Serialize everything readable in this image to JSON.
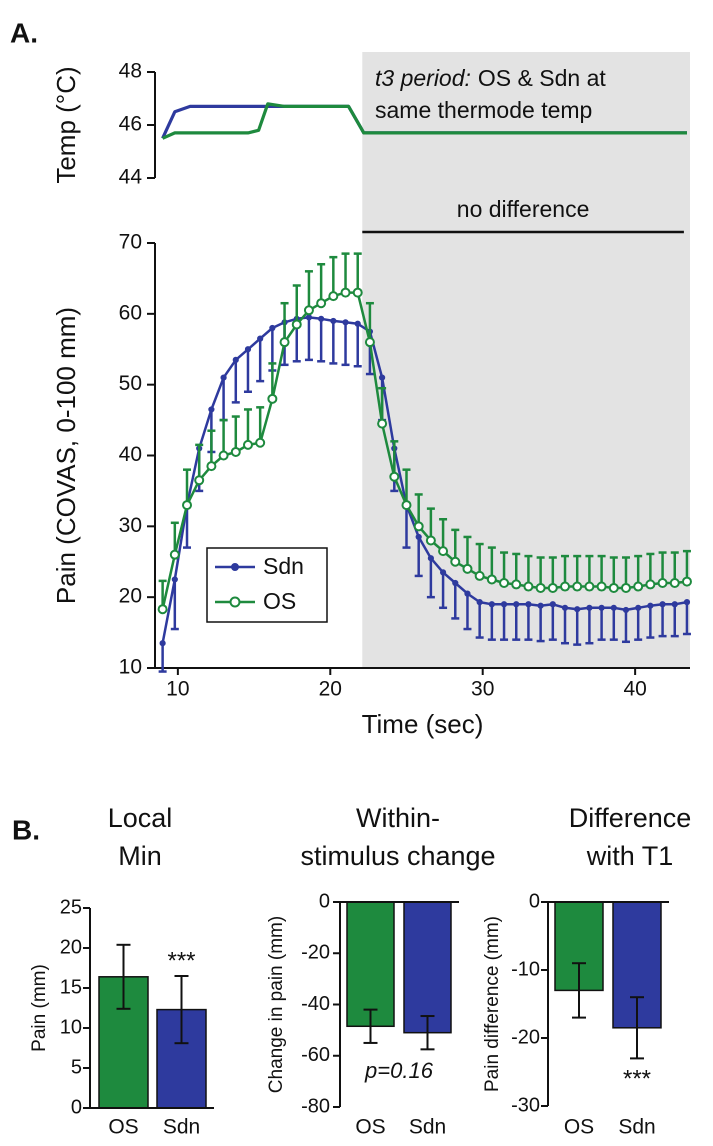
{
  "chart_data": [
    {
      "type": "line",
      "panel_label": "A.",
      "ylabel": "Temp (°C)",
      "xlim": [
        8.5,
        43.6
      ],
      "ylim": [
        44,
        48
      ],
      "yticks": [
        44,
        46,
        48
      ],
      "annotation_italic": "t3 period:",
      "annotation": [
        "OS & Sdn at",
        "same thermode temp"
      ],
      "series": [
        {
          "name": "Sdn",
          "color": "#2e3a9e",
          "x": [
            9,
            9.8,
            10.8,
            21.2,
            22.2,
            43.4
          ],
          "values": [
            45.5,
            46.5,
            46.7,
            46.7,
            45.7,
            45.7
          ]
        },
        {
          "name": "OS",
          "color": "#1e8a3e",
          "x": [
            9,
            9.8,
            14.6,
            15.3,
            15.9,
            17,
            21.2,
            22.2,
            43.4
          ],
          "values": [
            45.5,
            45.7,
            45.7,
            45.8,
            46.8,
            46.7,
            46.7,
            45.7,
            45.7
          ]
        }
      ]
    },
    {
      "type": "line",
      "xlabel": "Time (sec)",
      "ylabel": "Pain (COVAS, 0-100 mm)",
      "xlim": [
        8.5,
        43.6
      ],
      "xticks": [
        10,
        20,
        30,
        40
      ],
      "ylim": [
        10,
        70
      ],
      "yticks": [
        10,
        20,
        30,
        40,
        50,
        60,
        70
      ],
      "legend": "lower left",
      "shaded_xrange": [
        22.1,
        43.6
      ],
      "bracket": {
        "label": "no difference",
        "xrange": [
          22.1,
          43.2
        ]
      },
      "x": [
        9,
        9.8,
        10.6,
        11.4,
        12.2,
        13,
        13.8,
        14.6,
        15.4,
        16.2,
        17,
        17.8,
        18.6,
        19.4,
        20.2,
        21,
        21.8,
        22.6,
        23.4,
        24.2,
        25,
        25.8,
        26.6,
        27.4,
        28.2,
        29,
        29.8,
        30.6,
        31.4,
        32.2,
        33,
        33.8,
        34.6,
        35.4,
        36.2,
        37,
        37.8,
        38.6,
        39.4,
        40.2,
        41,
        41.8,
        42.6,
        43.4
      ],
      "series": [
        {
          "name": "Sdn",
          "color": "#2e3a9e",
          "marker": "dot",
          "error_direction": "down",
          "values": [
            13.5,
            22.5,
            33,
            41,
            46.5,
            51,
            53.5,
            55,
            56.5,
            58,
            58.8,
            59.3,
            59.5,
            59.3,
            59,
            58.8,
            58.6,
            57.5,
            51,
            41,
            33,
            28.5,
            25.5,
            23.5,
            22,
            20.5,
            19.3,
            19,
            19,
            19,
            19,
            18.8,
            19,
            18.5,
            18.3,
            18.5,
            18.5,
            18.5,
            18.2,
            18.5,
            18.8,
            19,
            19,
            19.3
          ],
          "errors": [
            4,
            7,
            6,
            6,
            6,
            6,
            6,
            6,
            6,
            6,
            6,
            6,
            6,
            6,
            6,
            6,
            6,
            6,
            6,
            6,
            6,
            5.5,
            5.5,
            5,
            5,
            5,
            5,
            5,
            5,
            5,
            5,
            5,
            5,
            5,
            5,
            5,
            4.5,
            4.5,
            4.5,
            4.5,
            4.5,
            4.5,
            4.5,
            4.5
          ]
        },
        {
          "name": "OS",
          "color": "#1e8a3e",
          "marker": "open-circle",
          "error_direction": "up",
          "values": [
            18.3,
            26,
            33,
            36.5,
            38.5,
            40,
            40.5,
            41.5,
            41.8,
            48,
            56,
            58.5,
            60.5,
            61.5,
            62.5,
            63,
            63,
            56,
            44.5,
            37,
            33,
            30,
            28,
            26.5,
            25,
            24,
            23,
            22.5,
            22,
            21.8,
            21.5,
            21.3,
            21.3,
            21.5,
            21.5,
            21.5,
            21.5,
            21.3,
            21.3,
            21.5,
            21.8,
            22,
            22,
            22.2
          ],
          "errors": [
            4,
            4.5,
            5,
            5,
            5,
            5,
            5,
            5,
            5,
            5,
            5.5,
            5.5,
            5.5,
            5.5,
            5.5,
            5.5,
            5.5,
            5.5,
            5,
            5,
            5,
            4.5,
            4.5,
            4.5,
            4.5,
            4.5,
            4.5,
            4.5,
            4.3,
            4.3,
            4.3,
            4.3,
            4.3,
            4.3,
            4.3,
            4.3,
            4.3,
            4.3,
            4.3,
            4.3,
            4.3,
            4.3,
            4.3,
            4.3
          ]
        }
      ]
    },
    {
      "type": "bar",
      "panel_label": "B.",
      "title": [
        "Local",
        "Min"
      ],
      "ylabel": "Pain (mm)",
      "categories": [
        "OS",
        "Sdn"
      ],
      "values": [
        16.4,
        12.3
      ],
      "errors": [
        4,
        4.2
      ],
      "colors": [
        "#1e8a3e",
        "#2e3a9e"
      ],
      "value_annotations": [
        null,
        "***"
      ],
      "ylim": [
        0,
        25
      ],
      "yticks": [
        0,
        5,
        10,
        15,
        20,
        25
      ]
    },
    {
      "type": "bar",
      "title": [
        "Within-",
        "stimulus change"
      ],
      "ylabel": "Change in pain (mm)",
      "categories": [
        "OS",
        "Sdn"
      ],
      "values": [
        -48.5,
        -51
      ],
      "errors": [
        6.5,
        6.5
      ],
      "colors": [
        "#1e8a3e",
        "#2e3a9e"
      ],
      "note": "p=0.16",
      "ylim": [
        -80,
        0
      ],
      "yticks": [
        0,
        -20,
        -40,
        -60,
        -80
      ]
    },
    {
      "type": "bar",
      "title": [
        "Difference",
        "with T1"
      ],
      "ylabel": "Pain difference (mm)",
      "categories": [
        "OS",
        "Sdn"
      ],
      "values": [
        -13,
        -18.5
      ],
      "errors": [
        4,
        4.5
      ],
      "colors": [
        "#1e8a3e",
        "#2e3a9e"
      ],
      "value_annotations": [
        null,
        "***"
      ],
      "ylim": [
        -30,
        0
      ],
      "yticks": [
        0,
        -10,
        -20,
        -30
      ]
    }
  ]
}
